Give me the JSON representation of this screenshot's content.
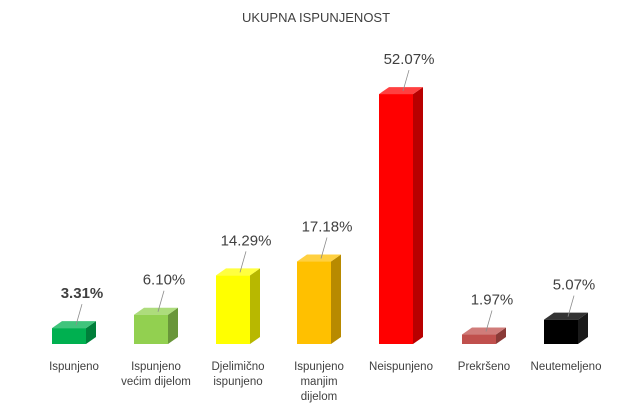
{
  "chart_data": {
    "type": "bar",
    "title": "UKUPNA ISPUNJENOST",
    "xlabel": "",
    "ylabel": "",
    "ylim": [
      0,
      60
    ],
    "grid": false,
    "legend": "none",
    "categories": [
      "Ispunjeno",
      "Ispunjeno\nvećim dijelom",
      "Djelimično\nispunjeno",
      "Ispunjeno\nmanjim\ndijelom",
      "Neispunjeno",
      "Prekršeno",
      "Neutemeljeno"
    ],
    "values": [
      3.31,
      6.1,
      14.29,
      17.18,
      52.07,
      1.97,
      5.07
    ],
    "data_labels": [
      "3.31%",
      "6.10%",
      "14.29%",
      "17.18%",
      "52.07%",
      "1.97%",
      "5.07%"
    ],
    "label_bold": [
      true,
      false,
      false,
      false,
      false,
      false,
      false
    ],
    "colors": [
      "#00b050",
      "#92d050",
      "#ffff00",
      "#ffc000",
      "#ff0000",
      "#c0504d",
      "#000000"
    ]
  }
}
